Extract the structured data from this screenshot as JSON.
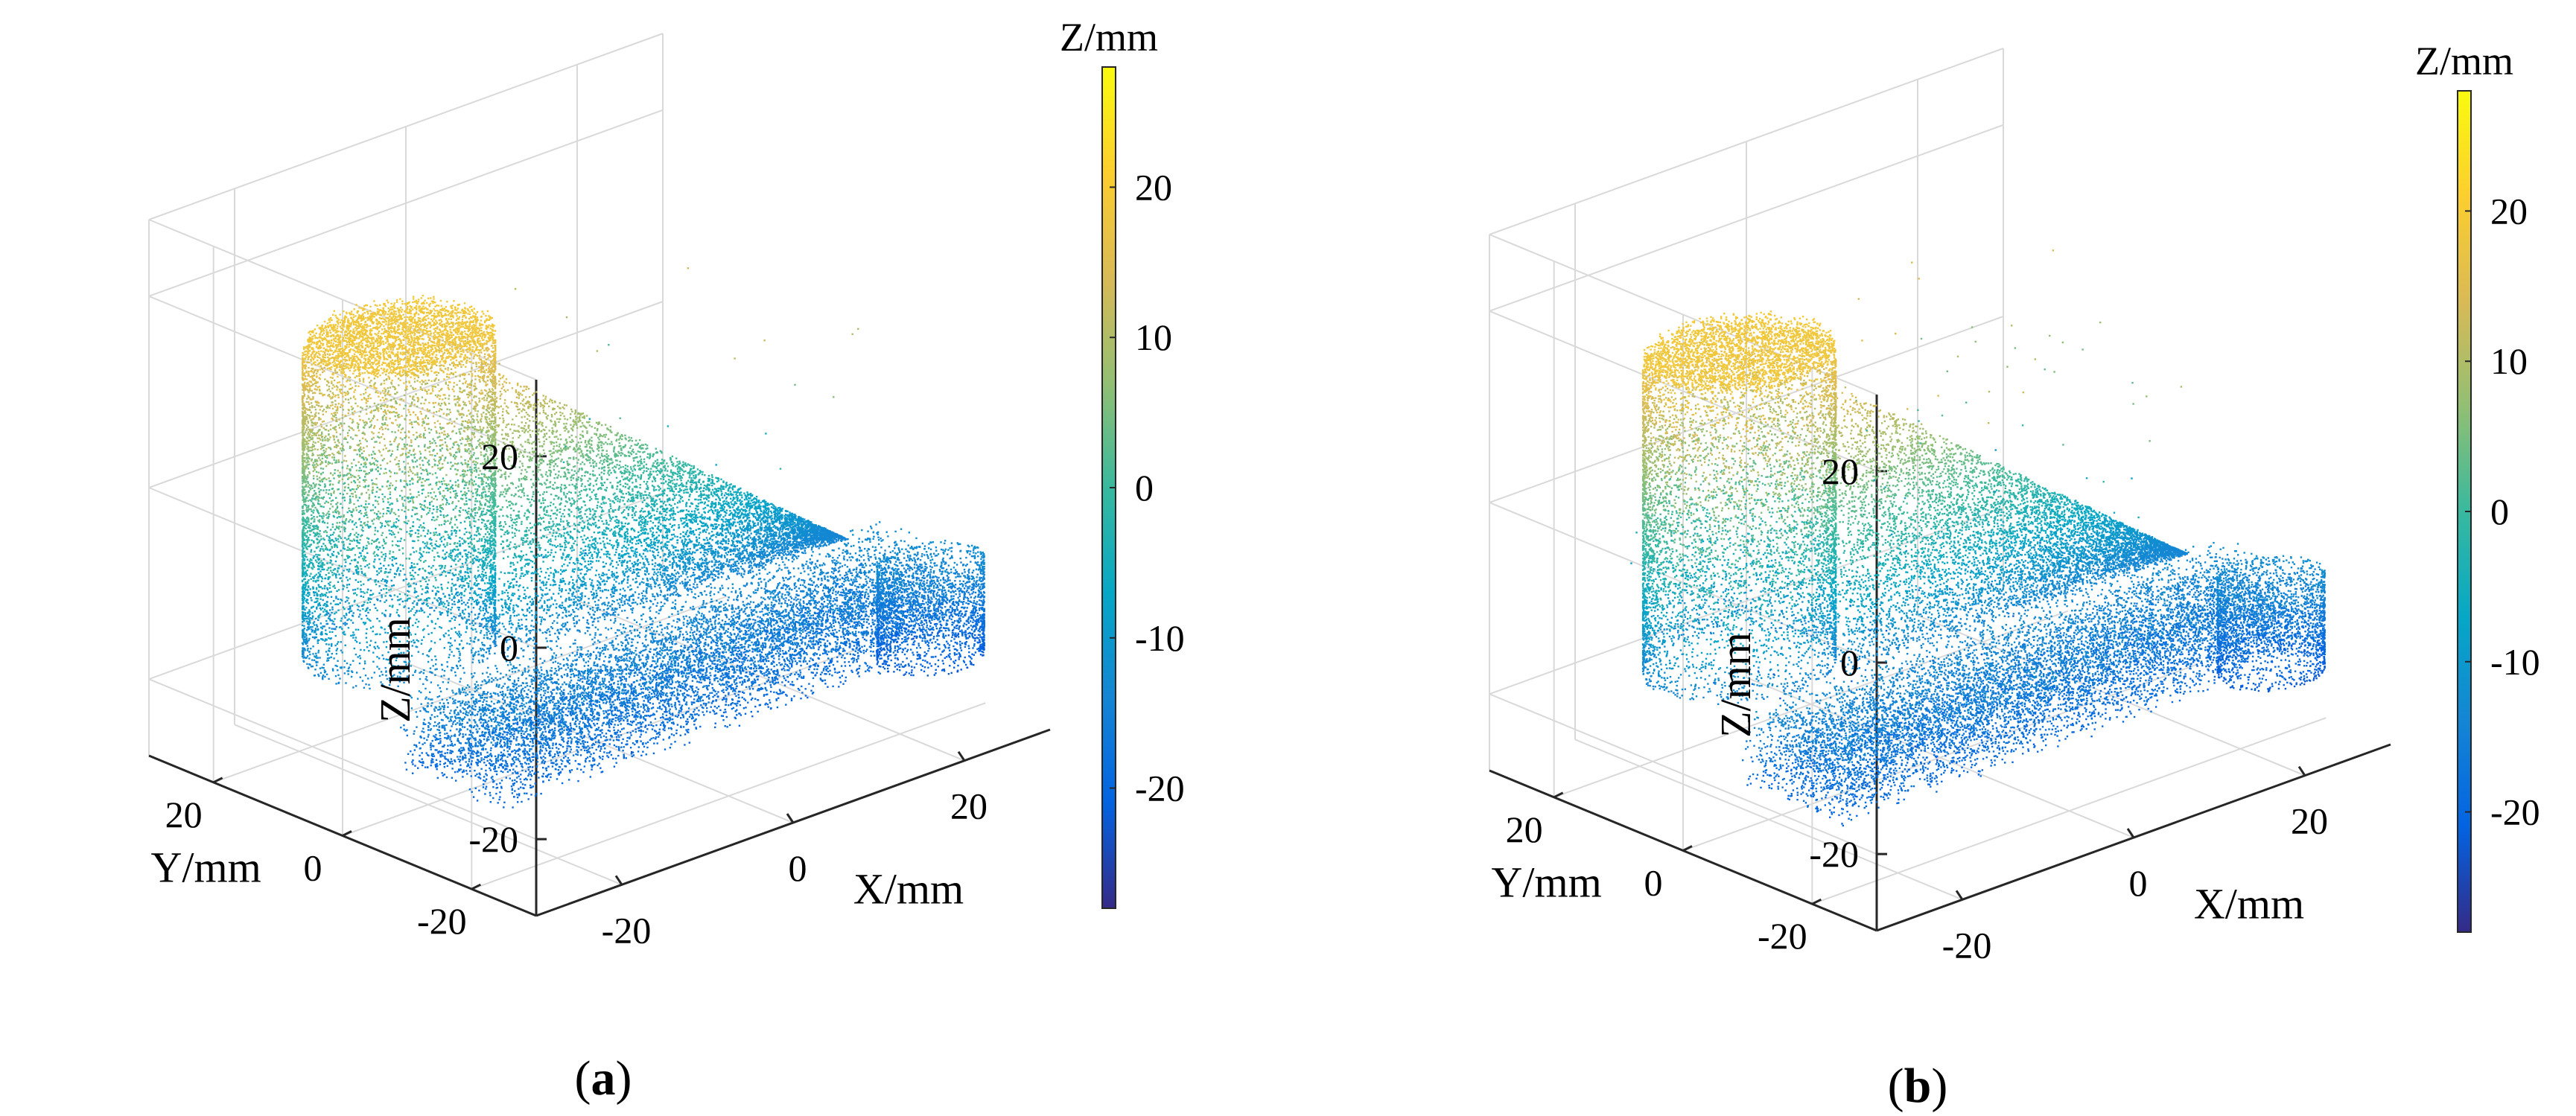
{
  "figure": {
    "panels": [
      {
        "caption": "a",
        "chart_data": {
          "type": "scatter",
          "subtype": "3d-point-cloud",
          "title": "",
          "xlabel": "X/mm",
          "ylabel": "Y/mm",
          "zlabel": "Z/mm",
          "xlim": [
            -30,
            30
          ],
          "ylim": [
            -30,
            30
          ],
          "zlim": [
            -28,
            28
          ],
          "xticks": [
            -20,
            0,
            20
          ],
          "yticks": [
            -20,
            0,
            20
          ],
          "zticks": [
            -20,
            0,
            20
          ],
          "grid": true,
          "colorbar": {
            "label": "Z/mm",
            "ticks": [
              20,
              10,
              0,
              -10,
              -20
            ],
            "range": [
              -28,
              28
            ],
            "colormap": "parula"
          },
          "points": {
            "description": "",
            "noise_points": "sparse"
          }
        }
      },
      {
        "caption": "b",
        "chart_data": {
          "type": "scatter",
          "subtype": "3d-point-cloud",
          "title": "",
          "xlabel": "X/mm",
          "ylabel": "Y/mm",
          "zlabel": "Z/mm",
          "xlim": [
            -30,
            30
          ],
          "ylim": [
            -30,
            30
          ],
          "zlim": [
            -28,
            28
          ],
          "xticks": [
            -20,
            0,
            20
          ],
          "yticks": [
            -20,
            0,
            20
          ],
          "zticks": [
            -20,
            0,
            20
          ],
          "grid": true,
          "colorbar": {
            "label": "Z/mm",
            "ticks": [
              20,
              10,
              0,
              -10,
              -20
            ],
            "range": [
              -28,
              28
            ],
            "colormap": "parula"
          },
          "points": {
            "description": "",
            "noise_points": "denser"
          }
        }
      }
    ]
  },
  "colors": {
    "parula": [
      "#352a87",
      "#0363e1",
      "#1485d4",
      "#06a7c6",
      "#38b99e",
      "#92bf73",
      "#d9ba56",
      "#fcce2e",
      "#f9fb0e"
    ],
    "axis": "#262626",
    "grid": "#d9d9d9"
  }
}
